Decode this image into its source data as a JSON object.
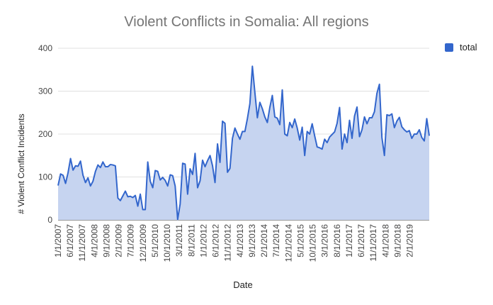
{
  "chart_data": {
    "type": "area",
    "title": "Violent Conflicts in Somalia: All regions",
    "xlabel": "Date",
    "ylabel": "# Violent Conflict Incidents",
    "ylim": [
      0,
      400
    ],
    "yticks": [
      "0",
      "100",
      "200",
      "300",
      "400"
    ],
    "grid": true,
    "legend_position": "top-right",
    "x_tick_labels": [
      "1/1/2007",
      "6/1/2007",
      "11/1/2007",
      "4/1/2008",
      "9/1/2008",
      "2/1/2009",
      "7/1/2009",
      "12/1/2009",
      "5/1/2010",
      "10/1/2010",
      "3/1/2011",
      "8/1/2011",
      "1/1/2012",
      "6/1/2012",
      "11/1/2012",
      "4/1/2013",
      "9/1/2013",
      "2/1/2014",
      "7/1/2014",
      "12/1/2014",
      "5/1/2015",
      "10/1/2015",
      "3/1/2016",
      "8/1/2016",
      "1/1/2017",
      "6/1/2017",
      "11/1/2017",
      "4/1/2018",
      "9/1/2018",
      "2/1/2019"
    ],
    "x_start": "1/1/2007",
    "x_end": "10/1/2019",
    "series": [
      {
        "name": "total",
        "color": "#3366cc",
        "fill": "#c6d4f0",
        "values": [
          80,
          107,
          104,
          85,
          110,
          143,
          116,
          126,
          125,
          137,
          104,
          87,
          98,
          79,
          90,
          113,
          128,
          122,
          135,
          124,
          124,
          129,
          128,
          126,
          51,
          45,
          56,
          67,
          54,
          55,
          52,
          57,
          32,
          60,
          24,
          24,
          135,
          90,
          75,
          115,
          113,
          93,
          99,
          92,
          79,
          105,
          103,
          79,
          1,
          37,
          132,
          130,
          60,
          119,
          106,
          155,
          75,
          91,
          139,
          124,
          138,
          150,
          126,
          87,
          177,
          134,
          230,
          225,
          111,
          120,
          190,
          214,
          200,
          188,
          206,
          206,
          236,
          271,
          358,
          297,
          238,
          274,
          259,
          240,
          227,
          262,
          290,
          240,
          237,
          222,
          303,
          200,
          196,
          227,
          215,
          235,
          214,
          186,
          216,
          150,
          206,
          200,
          224,
          196,
          170,
          168,
          165,
          188,
          180,
          193,
          199,
          205,
          225,
          262,
          165,
          200,
          180,
          232,
          190,
          242,
          263,
          194,
          210,
          240,
          224,
          238,
          238,
          252,
          295,
          316,
          192,
          150,
          245,
          243,
          247,
          215,
          230,
          239,
          217,
          210,
          205,
          208,
          190,
          200,
          200,
          210,
          192,
          184,
          236,
          196
        ]
      }
    ]
  }
}
